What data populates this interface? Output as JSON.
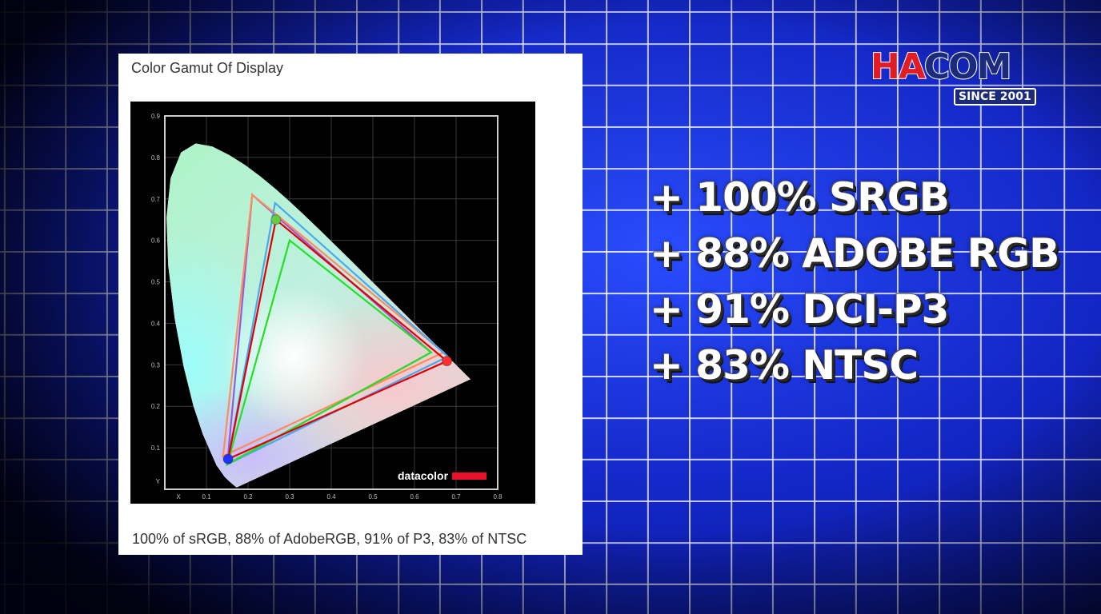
{
  "card": {
    "title": "Color Gamut Of Display",
    "caption": "100% of sRGB, 88% of AdobeRGB, 91% of P3, 83% of NTSC"
  },
  "stats": [
    "+ 100% SRGB",
    "+ 88% ADOBE RGB",
    "+ 91% DCI-P3",
    "+ 83% NTSC"
  ],
  "logo": {
    "brand": "HACOM",
    "tagline": "SINCE 2001"
  },
  "chart_data": {
    "type": "line",
    "title": "",
    "xlabel": "X",
    "ylabel": "Y",
    "xlim": [
      0,
      0.8
    ],
    "ylim": [
      0,
      0.9
    ],
    "x_ticks": [
      "X",
      "0.1",
      "0.2",
      "0.3",
      "0.4",
      "0.5",
      "0.6",
      "0.7",
      "0.8"
    ],
    "y_ticks": [
      "Y",
      "0.1",
      "0.2",
      "0.3",
      "0.4",
      "0.5",
      "0.6",
      "0.7",
      "0.8",
      "0.9"
    ],
    "grid": true,
    "watermark": "datacolor",
    "spectral_locus": [
      [
        0.1741,
        0.005
      ],
      [
        0.1733,
        0.0048
      ],
      [
        0.1714,
        0.0051
      ],
      [
        0.1689,
        0.0069
      ],
      [
        0.1644,
        0.0109
      ],
      [
        0.1566,
        0.0177
      ],
      [
        0.144,
        0.0297
      ],
      [
        0.1241,
        0.0578
      ],
      [
        0.0913,
        0.1327
      ],
      [
        0.0687,
        0.2007
      ],
      [
        0.0454,
        0.295
      ],
      [
        0.0235,
        0.4127
      ],
      [
        0.0082,
        0.5384
      ],
      [
        0.0039,
        0.6548
      ],
      [
        0.0139,
        0.7502
      ],
      [
        0.0389,
        0.812
      ],
      [
        0.0743,
        0.8338
      ],
      [
        0.1142,
        0.8262
      ],
      [
        0.1547,
        0.8059
      ],
      [
        0.1929,
        0.7816
      ],
      [
        0.2296,
        0.7543
      ],
      [
        0.2658,
        0.7243
      ],
      [
        0.3016,
        0.6923
      ],
      [
        0.3373,
        0.6589
      ],
      [
        0.3731,
        0.6245
      ],
      [
        0.4087,
        0.5896
      ],
      [
        0.4441,
        0.5547
      ],
      [
        0.4788,
        0.5202
      ],
      [
        0.5125,
        0.4866
      ],
      [
        0.5448,
        0.4544
      ],
      [
        0.5752,
        0.4242
      ],
      [
        0.6029,
        0.3965
      ],
      [
        0.627,
        0.3725
      ],
      [
        0.6482,
        0.3514
      ],
      [
        0.6658,
        0.334
      ],
      [
        0.6801,
        0.3197
      ],
      [
        0.6915,
        0.3083
      ],
      [
        0.7006,
        0.2993
      ],
      [
        0.7347,
        0.2653
      ]
    ],
    "series": [
      {
        "color": "#9b59d6",
        "points": [
          [
            0.64,
            0.33
          ],
          [
            0.21,
            0.71
          ],
          [
            0.15,
            0.06
          ]
        ]
      },
      {
        "color": "#ff8a5c",
        "points": [
          [
            0.67,
            0.33
          ],
          [
            0.21,
            0.71
          ],
          [
            0.14,
            0.08
          ]
        ]
      },
      {
        "color": "#4aa8f0",
        "points": [
          [
            0.68,
            0.32
          ],
          [
            0.265,
            0.69
          ],
          [
            0.15,
            0.06
          ]
        ]
      },
      {
        "color": "#22e022",
        "points": [
          [
            0.64,
            0.33
          ],
          [
            0.3,
            0.6
          ],
          [
            0.15,
            0.06
          ]
        ]
      },
      {
        "color": "#e00000",
        "points": [
          [
            0.678,
            0.309
          ],
          [
            0.267,
            0.65
          ],
          [
            0.152,
            0.073
          ]
        ],
        "markers": [
          "#ff3030",
          "#66cc44",
          "#2233ff"
        ]
      }
    ]
  }
}
